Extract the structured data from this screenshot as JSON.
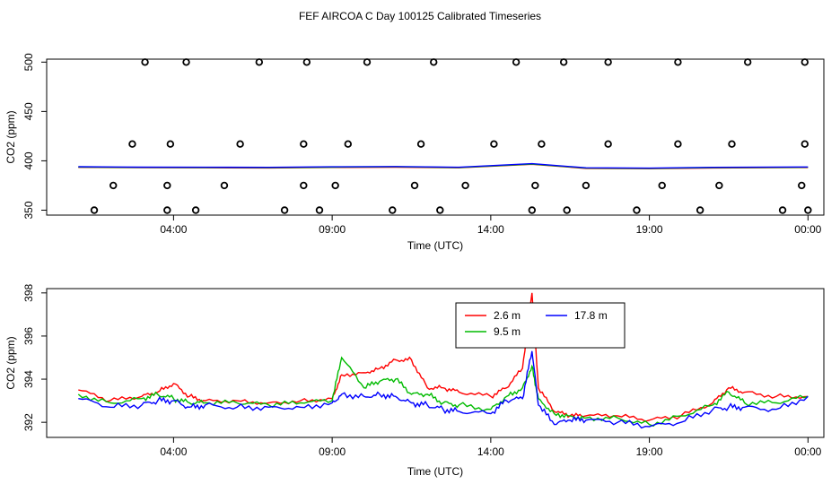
{
  "title": "FEF AIRCOA C  Day 100125  Calibrated Timeseries",
  "chart_data": [
    {
      "type": "line",
      "xlabel": "Time (UTC)",
      "ylabel": "CO2 (ppm)",
      "xlim": [
        0.0,
        24.5
      ],
      "ylim": [
        345,
        503
      ],
      "x_ticks": [
        {
          "value": 4,
          "label": "04:00"
        },
        {
          "value": 9,
          "label": "09:00"
        },
        {
          "value": 14,
          "label": "14:00"
        },
        {
          "value": 19,
          "label": "19:00"
        },
        {
          "value": 24,
          "label": "00:00"
        }
      ],
      "y_ticks": [
        {
          "value": 350,
          "label": "350"
        },
        {
          "value": 400,
          "label": "400"
        },
        {
          "value": 450,
          "label": "450"
        },
        {
          "value": 500,
          "label": "500"
        }
      ],
      "colors": {
        "s1": "#ff0000",
        "s2": "#00bb00",
        "s3": "#0000ff"
      },
      "series_points": [
        {
          "x": 1.0,
          "y": 393.4
        },
        {
          "x": 3.0,
          "y": 393.0
        },
        {
          "x": 5.0,
          "y": 392.9
        },
        {
          "x": 7.0,
          "y": 392.8
        },
        {
          "x": 9.0,
          "y": 393.3
        },
        {
          "x": 11.0,
          "y": 393.6
        },
        {
          "x": 13.0,
          "y": 392.9
        },
        {
          "x": 15.3,
          "y": 396.5
        },
        {
          "x": 17.0,
          "y": 392.3
        },
        {
          "x": 19.0,
          "y": 392.0
        },
        {
          "x": 21.0,
          "y": 392.8
        },
        {
          "x": 24.0,
          "y": 393.2
        }
      ],
      "calibration_points": {
        "x": [
          1.5,
          2.1,
          2.7,
          3.1,
          3.8,
          3.8,
          3.9,
          4.4,
          4.7,
          5.6,
          6.1,
          6.7,
          7.5,
          8.1,
          8.1,
          8.2,
          8.6,
          9.1,
          9.5,
          10.1,
          10.9,
          11.6,
          11.8,
          12.2,
          12.4,
          13.2,
          14.1,
          14.8,
          15.3,
          15.4,
          15.6,
          16.3,
          16.4,
          17.0,
          17.7,
          17.7,
          18.6,
          19.4,
          19.9,
          19.9,
          20.6,
          21.2,
          21.6,
          22.1,
          23.2,
          23.8,
          23.9,
          23.9,
          24.0
        ],
        "y": [
          350,
          375,
          417,
          500,
          350,
          375,
          417,
          500,
          350,
          375,
          417,
          500,
          350,
          375,
          417,
          500,
          350,
          375,
          417,
          500,
          350,
          375,
          417,
          500,
          350,
          375,
          417,
          500,
          350,
          375,
          417,
          500,
          350,
          375,
          417,
          500,
          350,
          375,
          417,
          500,
          350,
          375,
          417,
          500,
          350,
          375,
          417,
          500,
          350
        ]
      }
    },
    {
      "type": "line",
      "xlabel": "Time (UTC)",
      "ylabel": "CO2 (ppm)",
      "xlim": [
        0.0,
        24.5
      ],
      "ylim": [
        391.3,
        398.2
      ],
      "x_ticks": [
        {
          "value": 4,
          "label": "04:00"
        },
        {
          "value": 9,
          "label": "09:00"
        },
        {
          "value": 14,
          "label": "14:00"
        },
        {
          "value": 19,
          "label": "19:00"
        },
        {
          "value": 24,
          "label": "00:00"
        }
      ],
      "y_ticks": [
        {
          "value": 392,
          "label": "392"
        },
        {
          "value": 394,
          "label": "394"
        },
        {
          "value": 396,
          "label": "396"
        },
        {
          "value": 398,
          "label": "398"
        }
      ],
      "legend": {
        "position": "top-center",
        "entries": [
          {
            "label": "2.6 m",
            "color": "#ff0000"
          },
          {
            "label": "9.5 m",
            "color": "#00bb00"
          },
          {
            "label": "17.8 m",
            "color": "#0000ff"
          }
        ]
      },
      "series": [
        {
          "name": "2.6 m",
          "color": "#ff0000",
          "x": [
            1.0,
            2.0,
            3.0,
            3.5,
            4.0,
            4.5,
            5.0,
            6.0,
            7.0,
            8.0,
            9.0,
            9.3,
            10.0,
            10.5,
            11.0,
            11.5,
            12.0,
            12.5,
            13.0,
            14.0,
            14.5,
            15.0,
            15.3,
            15.5,
            16.0,
            16.5,
            17.0,
            18.0,
            19.0,
            20.0,
            21.0,
            21.5,
            22.0,
            23.0,
            24.0
          ],
          "y": [
            393.5,
            393.0,
            393.2,
            393.4,
            393.8,
            393.2,
            393.0,
            393.0,
            392.9,
            393.0,
            393.1,
            394.2,
            394.3,
            394.5,
            394.9,
            394.9,
            393.6,
            393.6,
            393.4,
            393.2,
            393.6,
            394.5,
            398.0,
            393.6,
            392.5,
            392.3,
            392.3,
            392.3,
            392.1,
            392.3,
            392.9,
            393.6,
            393.4,
            393.2,
            393.2
          ]
        },
        {
          "name": "9.5 m",
          "color": "#00bb00",
          "x": [
            1.0,
            2.0,
            3.0,
            3.5,
            4.0,
            4.5,
            5.0,
            6.0,
            7.0,
            8.0,
            9.0,
            9.3,
            10.0,
            10.5,
            11.0,
            11.5,
            12.0,
            12.5,
            13.0,
            14.0,
            14.5,
            15.0,
            15.3,
            15.5,
            16.0,
            16.5,
            17.0,
            18.0,
            19.0,
            20.0,
            21.0,
            21.5,
            22.0,
            23.0,
            24.0
          ],
          "y": [
            393.3,
            392.9,
            393.1,
            393.3,
            393.1,
            392.9,
            392.9,
            392.9,
            392.8,
            392.9,
            393.0,
            395.0,
            393.6,
            393.9,
            394.0,
            393.3,
            393.3,
            392.9,
            392.8,
            392.6,
            393.2,
            393.6,
            394.6,
            393.1,
            392.4,
            392.3,
            392.2,
            392.2,
            391.9,
            392.3,
            392.8,
            393.4,
            392.9,
            392.9,
            393.2
          ]
        },
        {
          "name": "17.8 m",
          "color": "#0000ff",
          "x": [
            1.0,
            2.0,
            3.0,
            3.5,
            4.0,
            4.5,
            5.0,
            6.0,
            7.0,
            8.0,
            9.0,
            9.3,
            10.0,
            10.5,
            11.0,
            11.5,
            12.0,
            12.5,
            13.0,
            14.0,
            14.5,
            15.0,
            15.3,
            15.5,
            16.0,
            16.5,
            17.0,
            18.0,
            19.0,
            20.0,
            21.0,
            21.5,
            22.0,
            23.0,
            24.0
          ],
          "y": [
            393.1,
            392.7,
            392.8,
            393.0,
            393.0,
            392.7,
            392.8,
            392.7,
            392.7,
            392.7,
            392.9,
            393.3,
            393.2,
            393.3,
            393.2,
            392.9,
            392.8,
            392.6,
            392.5,
            392.4,
            393.0,
            393.1,
            395.3,
            392.8,
            391.9,
            392.1,
            392.1,
            392.0,
            391.8,
            392.0,
            392.6,
            392.7,
            392.7,
            392.6,
            393.2
          ]
        }
      ]
    }
  ]
}
